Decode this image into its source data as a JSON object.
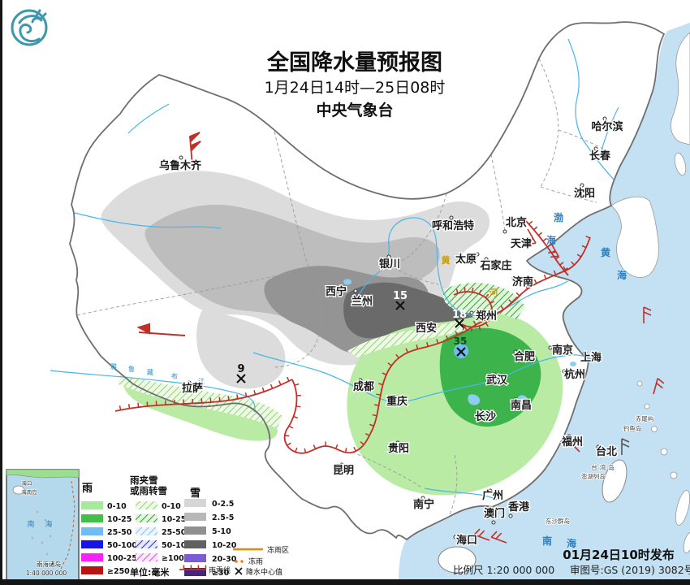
{
  "header": {
    "title": "全国降水量预报图",
    "period": "1月24日14时—25日08时",
    "agency": "中央气象台"
  },
  "footer": {
    "issued": "01月24日10时发布",
    "scale": "比例尺 1:20 000 000",
    "license": "审图号:GS (2019) 3082号"
  },
  "legend": {
    "rain": {
      "title": "雨",
      "labels": [
        "0-10",
        "10-25",
        "25-50",
        "50-100",
        "100-250",
        "≥250"
      ]
    },
    "sleet": {
      "title1": "雨夹雪",
      "title2": "或雨转雪",
      "labels": [
        "0-10",
        "10-25",
        "25-50",
        "50-100",
        "≥100"
      ]
    },
    "snow": {
      "title": "雪",
      "labels": [
        "0-2.5",
        "2.5-5",
        "5-10",
        "10-20",
        "20-30",
        "≥30"
      ]
    },
    "unit": "单位:毫米",
    "symbols": {
      "rain_snow_line": "雨雪线",
      "freezing_zone": "冻雨区",
      "freezing_rain": "冻雨",
      "center": "降水中心值"
    }
  },
  "palette": {
    "rain": [
      "#a8e89c",
      "#42bf49",
      "#70bdf2",
      "#1414e6",
      "#f523f5",
      "#b81414"
    ],
    "snow": [
      "#d6d6d6",
      "#b8b8b8",
      "#909090",
      "#606060",
      "#7a5cd6",
      "#45237e"
    ],
    "map_snow": [
      "#dcdcdc",
      "#bdbdbd",
      "#949494",
      "#6a6a6a"
    ],
    "map_rain": [
      "#b9eba4",
      "#3cb44b"
    ],
    "sea": "#c3e1f2",
    "rain_snow_line": "#c03028",
    "freezing": "#e8860a"
  },
  "map": {
    "cities": [
      "乌鲁木齐",
      "哈尔滨",
      "长春",
      "沈阳",
      "呼和浩特",
      "北京",
      "天津",
      "太原",
      "石家庄",
      "济南",
      "银川",
      "西宁",
      "兰州",
      "西安",
      "郑州",
      "南京",
      "上海",
      "合肥",
      "杭州",
      "武汉",
      "南昌",
      "长沙",
      "成都",
      "重庆",
      "贵阳",
      "昆明",
      "拉萨",
      "南宁",
      "广州",
      "香港",
      "澳门",
      "海口",
      "福州",
      "台北"
    ],
    "islands": [
      "台湾岛",
      "钓鱼岛",
      "赤尾屿",
      "澎湖列岛",
      "东沙群岛"
    ],
    "seas": {
      "bo": [
        "渤",
        "海"
      ],
      "huang": [
        "黄",
        "海"
      ],
      "nan": [
        "南",
        "海"
      ]
    },
    "river_labels": {
      "yellow": [
        "黄",
        "河"
      ],
      "yarlung": [
        "雅",
        "鲁",
        "藏",
        "布",
        "江"
      ]
    },
    "centers": [
      "15",
      "18",
      "9",
      "35"
    ]
  },
  "inset": {
    "haikou": "海口",
    "hainan": "海南岛",
    "sea": [
      "南",
      "海"
    ],
    "title": "南海诸岛",
    "scale": "1:40 000 000"
  }
}
